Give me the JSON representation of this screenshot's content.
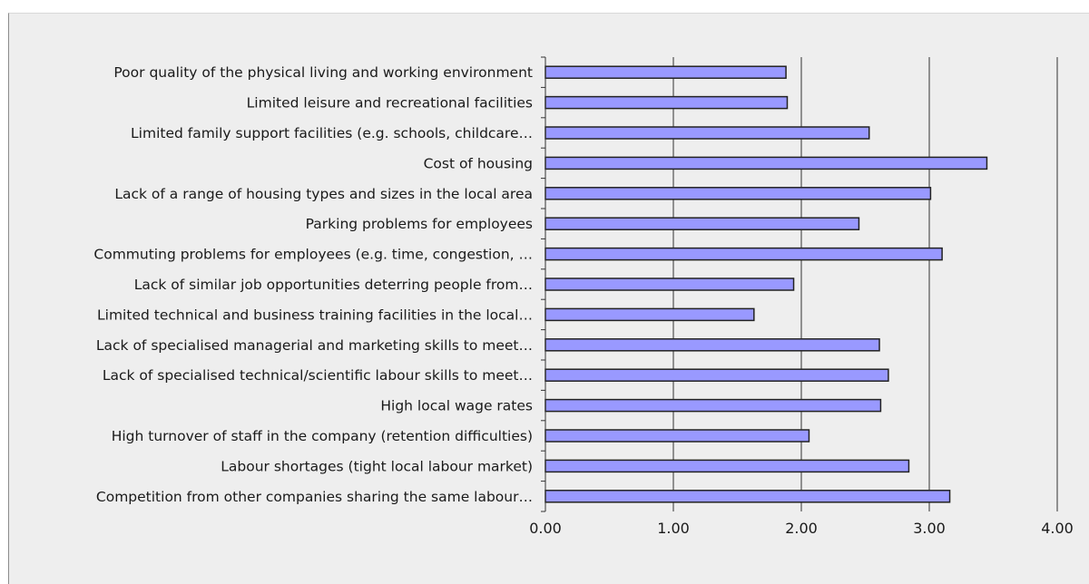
{
  "colors": {
    "background": "#eeeeee",
    "bar_fill": "#9999ff",
    "bar_stroke": "#222222",
    "grid": "#333333"
  },
  "chart_data": {
    "type": "bar",
    "orientation": "horizontal",
    "title": "",
    "xlabel": "",
    "ylabel": "",
    "xlim": [
      0,
      4
    ],
    "x_ticks": [
      "0.00",
      "1.00",
      "2.00",
      "3.00",
      "4.00"
    ],
    "grid": "vertical",
    "legend": "none",
    "categories": [
      "Poor quality of the physical living and working environment",
      "Limited leisure and recreational facilities",
      "Limited family support facilities (e.g. schools, childcare…",
      "Cost of housing",
      "Lack of a range of housing types and sizes in the local area",
      "Parking problems for employees",
      "Commuting problems for employees (e.g. time, congestion, …",
      "Lack of similar job opportunities deterring people from…",
      "Limited technical and business training facilities in the local…",
      "Lack of specialised managerial and marketing skills to meet…",
      "Lack of specialised technical/scientific labour skills to meet…",
      "High local wage rates",
      "High turnover of staff in the company (retention difficulties)",
      "Labour shortages (tight local labour market)",
      "Competition from other companies sharing the same labour…"
    ],
    "values": [
      1.88,
      1.89,
      2.53,
      3.45,
      3.01,
      2.45,
      3.1,
      1.94,
      1.63,
      2.61,
      2.68,
      2.62,
      2.06,
      2.84,
      3.16
    ]
  }
}
